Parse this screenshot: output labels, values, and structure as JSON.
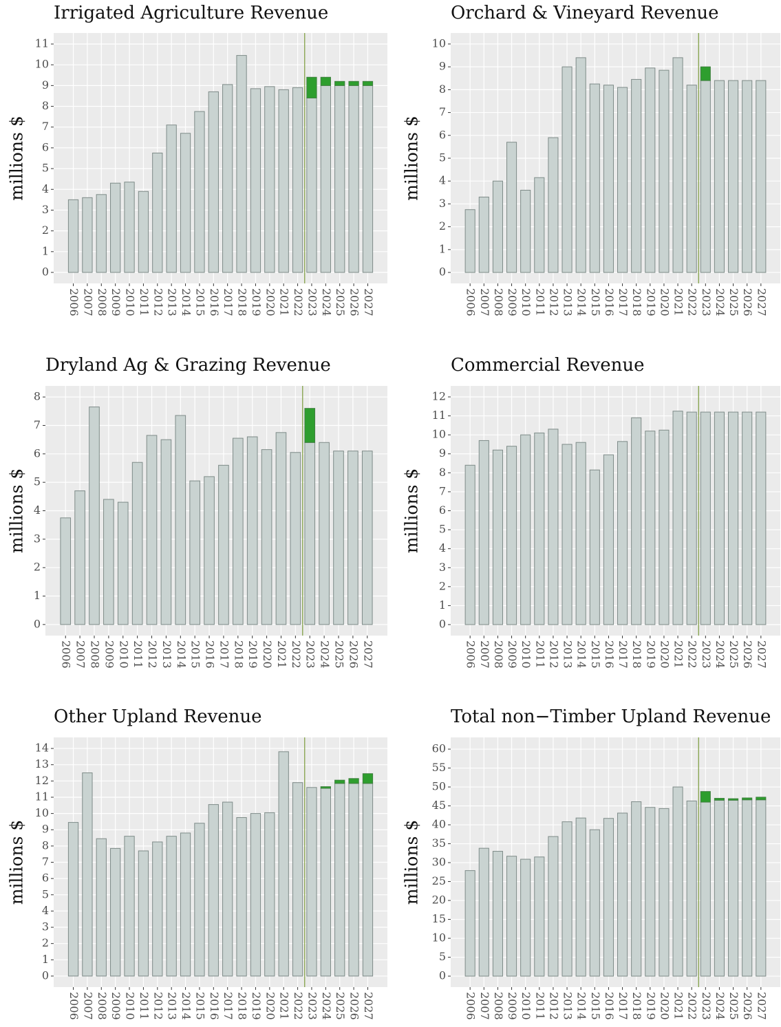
{
  "chart_data": [
    {
      "type": "bar",
      "stacked": true,
      "title": "Irrigated Agriculture Revenue",
      "ylabel": "millions $",
      "categories": [
        "2006",
        "2007",
        "2008",
        "2009",
        "2010",
        "2011",
        "2012",
        "2013",
        "2014",
        "2015",
        "2016",
        "2017",
        "2018",
        "2019",
        "2020",
        "2021",
        "2022",
        "2023",
        "2024",
        "2025",
        "2026",
        "2027"
      ],
      "series": [
        {
          "color": "#c9d3d1",
          "values": [
            3.5,
            3.6,
            3.75,
            4.3,
            4.35,
            3.9,
            5.75,
            7.1,
            6.7,
            7.75,
            8.7,
            9.05,
            10.45,
            8.85,
            8.95,
            8.8,
            8.9,
            8.4,
            9.0,
            9.0,
            9.0,
            9.0
          ]
        },
        {
          "color": "#2e9e2e",
          "values": [
            0,
            0,
            0,
            0,
            0,
            0,
            0,
            0,
            0,
            0,
            0,
            0,
            0,
            0,
            0,
            0,
            0,
            1.0,
            0.4,
            0.2,
            0.2,
            0.2
          ]
        }
      ],
      "ylim": [
        -0.53,
        11.53
      ],
      "yticks": [
        0,
        1,
        2,
        3,
        4,
        5,
        6,
        7,
        8,
        9,
        10,
        11
      ],
      "grid": true,
      "vline_after": "2022",
      "vline_color": "#7a9a3a"
    },
    {
      "type": "bar",
      "stacked": true,
      "title": "Orchard & Vineyard Revenue",
      "ylabel": "millions $",
      "categories": [
        "2006",
        "2007",
        "2008",
        "2009",
        "2010",
        "2011",
        "2012",
        "2013",
        "2014",
        "2015",
        "2016",
        "2017",
        "2018",
        "2019",
        "2020",
        "2021",
        "2022",
        "2023",
        "2024",
        "2025",
        "2026",
        "2027"
      ],
      "series": [
        {
          "color": "#c9d3d1",
          "values": [
            2.75,
            3.3,
            4.0,
            5.7,
            3.6,
            4.15,
            5.9,
            9.0,
            9.4,
            8.25,
            8.2,
            8.1,
            8.45,
            8.95,
            8.85,
            9.4,
            8.2,
            8.4,
            8.4,
            8.4,
            8.4,
            8.4
          ]
        },
        {
          "color": "#2e9e2e",
          "values": [
            0,
            0,
            0,
            0,
            0,
            0,
            0,
            0,
            0,
            0,
            0,
            0,
            0,
            0,
            0,
            0,
            0,
            0.6,
            0,
            0,
            0,
            0
          ]
        }
      ],
      "ylim": [
        -0.48,
        10.48
      ],
      "yticks": [
        0,
        1,
        2,
        3,
        4,
        5,
        6,
        7,
        8,
        9,
        10
      ],
      "grid": true,
      "vline_after": "2022",
      "vline_color": "#7a9a3a"
    },
    {
      "type": "bar",
      "stacked": true,
      "title": "Dryland Ag & Grazing Revenue",
      "ylabel": "millions $",
      "categories": [
        "2006",
        "2007",
        "2008",
        "2009",
        "2010",
        "2011",
        "2012",
        "2013",
        "2014",
        "2015",
        "2016",
        "2017",
        "2018",
        "2019",
        "2020",
        "2021",
        "2022",
        "2023",
        "2024",
        "2025",
        "2026",
        "2027"
      ],
      "series": [
        {
          "color": "#c9d3d1",
          "values": [
            3.75,
            4.7,
            7.65,
            4.4,
            4.3,
            5.7,
            6.65,
            6.5,
            7.35,
            5.05,
            5.2,
            5.6,
            6.55,
            6.6,
            6.15,
            6.75,
            6.05,
            6.4,
            6.4,
            6.1,
            6.1,
            6.1
          ]
        },
        {
          "color": "#2e9e2e",
          "values": [
            0,
            0,
            0,
            0,
            0,
            0,
            0,
            0,
            0,
            0,
            0,
            0,
            0,
            0,
            0,
            0,
            0,
            1.2,
            0,
            0,
            0,
            0
          ]
        }
      ],
      "ylim": [
        -0.39,
        8.39
      ],
      "yticks": [
        0,
        1,
        2,
        3,
        4,
        5,
        6,
        7,
        8
      ],
      "grid": true,
      "vline_after": "2022",
      "vline_color": "#7a9a3a"
    },
    {
      "type": "bar",
      "stacked": true,
      "title": "Commercial Revenue",
      "ylabel": "millions $",
      "categories": [
        "2006",
        "2007",
        "2008",
        "2009",
        "2010",
        "2011",
        "2012",
        "2013",
        "2014",
        "2015",
        "2016",
        "2017",
        "2018",
        "2019",
        "2020",
        "2021",
        "2022",
        "2023",
        "2024",
        "2025",
        "2026",
        "2027"
      ],
      "series": [
        {
          "color": "#c9d3d1",
          "values": [
            8.4,
            9.7,
            9.2,
            9.4,
            10.0,
            10.1,
            10.3,
            9.5,
            9.6,
            8.15,
            8.95,
            9.65,
            10.9,
            10.2,
            10.25,
            11.25,
            11.2,
            11.2,
            11.2,
            11.2,
            11.2,
            11.2
          ]
        },
        {
          "color": "#2e9e2e",
          "values": [
            0,
            0,
            0,
            0,
            0,
            0,
            0,
            0,
            0,
            0,
            0,
            0,
            0,
            0,
            0,
            0,
            0,
            0,
            0,
            0,
            0,
            0
          ]
        }
      ],
      "ylim": [
        -0.58,
        12.58
      ],
      "yticks": [
        0,
        1,
        2,
        3,
        4,
        5,
        6,
        7,
        8,
        9,
        10,
        11,
        12
      ],
      "grid": true,
      "vline_after": "2022",
      "vline_color": "#7a9a3a"
    },
    {
      "type": "bar",
      "stacked": true,
      "title": "Other Upland Revenue",
      "ylabel": "millions $",
      "categories": [
        "2006",
        "2007",
        "2008",
        "2009",
        "2010",
        "2011",
        "2012",
        "2013",
        "2014",
        "2015",
        "2016",
        "2017",
        "2018",
        "2019",
        "2020",
        "2021",
        "2022",
        "2023",
        "2024",
        "2025",
        "2026",
        "2027"
      ],
      "series": [
        {
          "color": "#c9d3d1",
          "values": [
            9.45,
            12.5,
            8.45,
            7.85,
            8.6,
            7.7,
            8.25,
            8.6,
            8.8,
            9.4,
            10.55,
            10.7,
            9.75,
            10.0,
            10.05,
            13.8,
            11.9,
            11.6,
            11.55,
            11.85,
            11.85,
            11.85
          ]
        },
        {
          "color": "#2e9e2e",
          "values": [
            0,
            0,
            0,
            0,
            0,
            0,
            0,
            0,
            0,
            0,
            0,
            0,
            0,
            0,
            0,
            0,
            0,
            0,
            0.1,
            0.2,
            0.3,
            0.6
          ]
        }
      ],
      "ylim": [
        -0.68,
        14.68
      ],
      "yticks": [
        0,
        1,
        2,
        3,
        4,
        5,
        6,
        7,
        8,
        9,
        10,
        11,
        12,
        13,
        14
      ],
      "grid": true,
      "vline_after": "2022",
      "vline_color": "#7a9a3a"
    },
    {
      "type": "bar",
      "stacked": true,
      "title": "Total non−Timber Upland Revenue",
      "ylabel": "millions $",
      "categories": [
        "2006",
        "2007",
        "2008",
        "2009",
        "2010",
        "2011",
        "2012",
        "2013",
        "2014",
        "2015",
        "2016",
        "2017",
        "2018",
        "2019",
        "2020",
        "2021",
        "2022",
        "2023",
        "2024",
        "2025",
        "2026",
        "2027"
      ],
      "series": [
        {
          "color": "#c9d3d1",
          "values": [
            27.9,
            33.8,
            33.0,
            31.7,
            30.9,
            31.5,
            36.9,
            40.8,
            41.8,
            38.7,
            41.7,
            43.1,
            46.1,
            44.6,
            44.3,
            50.0,
            46.3,
            46.0,
            46.5,
            46.5,
            46.6,
            46.6
          ]
        },
        {
          "color": "#2e9e2e",
          "values": [
            0,
            0,
            0,
            0,
            0,
            0,
            0,
            0,
            0,
            0,
            0,
            0,
            0,
            0,
            0,
            0,
            0,
            2.8,
            0.5,
            0.4,
            0.5,
            0.7
          ]
        }
      ],
      "ylim": [
        -2.9,
        63.1
      ],
      "yticks": [
        0,
        5,
        10,
        15,
        20,
        25,
        30,
        35,
        40,
        45,
        50,
        55,
        60
      ],
      "grid": true,
      "vline_after": "2022",
      "vline_color": "#7a9a3a"
    }
  ]
}
